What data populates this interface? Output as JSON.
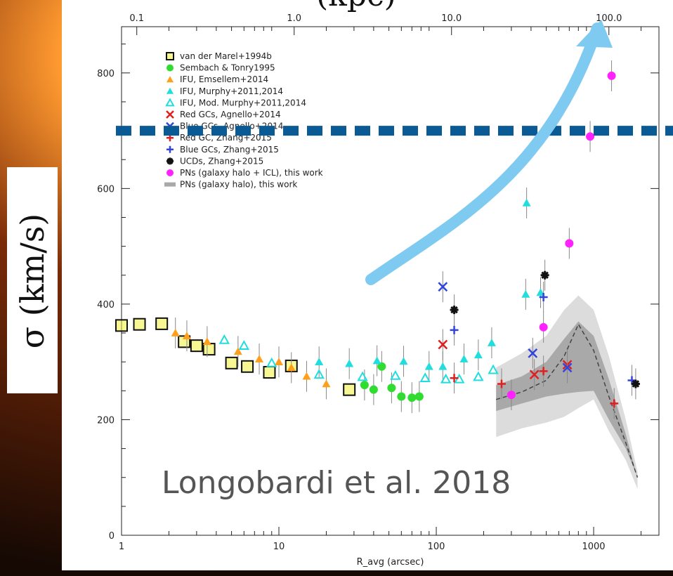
{
  "y_axis_title": "σ (km/s)",
  "top_axis_title": "(kpc)",
  "credit": "Longobardi et al. 2018",
  "colors": {
    "dashed_line": "#0a5a96",
    "arrow": "#7fcaf0",
    "shade_light": "#dcdcdc",
    "shade_dark": "#a9a9a9"
  },
  "chart_data": {
    "type": "scatter",
    "xscale": "log",
    "xlabel": "R_avg (arcsec)",
    "xlim": [
      1,
      2600
    ],
    "ylim": [
      0,
      880
    ],
    "xticks": [
      1,
      10,
      100,
      1000
    ],
    "xtick_labels": [
      "1",
      "10",
      "100",
      "1000"
    ],
    "yticks": [
      0,
      200,
      400,
      600,
      800
    ],
    "ytick_labels": [
      "0",
      "200",
      "400",
      "600",
      "800"
    ],
    "top_axis": {
      "ticks": [
        0.1,
        1.0,
        10.0,
        100.0
      ],
      "tick_labels": [
        "0.1",
        "1.0",
        "10.0",
        "100.0"
      ]
    },
    "legend_position": "top-left",
    "horizontal_line": {
      "y": 700,
      "style": "dashed"
    },
    "series": [
      {
        "name": "van der Marel+1994b",
        "marker": "open-square",
        "color": "#111111",
        "points": [
          [
            1.0,
            363
          ],
          [
            1.3,
            365
          ],
          [
            1.8,
            366
          ],
          [
            2.5,
            335
          ],
          [
            3.0,
            328
          ],
          [
            3.6,
            322
          ],
          [
            5.0,
            298
          ],
          [
            6.3,
            292
          ],
          [
            8.7,
            282
          ],
          [
            12,
            293
          ],
          [
            28,
            252
          ]
        ]
      },
      {
        "name": "Sembach & Tonry1995",
        "marker": "filled-circle",
        "color": "#2fdc2f",
        "points": [
          [
            35,
            260
          ],
          [
            40,
            252
          ],
          [
            45,
            292
          ],
          [
            52,
            255
          ],
          [
            60,
            240
          ],
          [
            70,
            238
          ],
          [
            78,
            240
          ]
        ]
      },
      {
        "name": "IFU, Emsellem+2014",
        "marker": "filled-triangle",
        "color": "#ff9f1a",
        "points": [
          [
            2.2,
            350
          ],
          [
            2.6,
            345
          ],
          [
            3.5,
            335
          ],
          [
            5.5,
            318
          ],
          [
            7.5,
            305
          ],
          [
            10,
            300
          ],
          [
            12,
            290
          ],
          [
            15,
            275
          ],
          [
            20,
            262
          ]
        ]
      },
      {
        "name": "IFU, Murphy+2011,2014",
        "marker": "filled-triangle",
        "color": "#22dddd",
        "points": [
          [
            18,
            300
          ],
          [
            28,
            297
          ],
          [
            42,
            302
          ],
          [
            62,
            301
          ],
          [
            90,
            292
          ],
          [
            110,
            292
          ],
          [
            150,
            305
          ],
          [
            185,
            312
          ],
          [
            225,
            333
          ],
          [
            370,
            417
          ],
          [
            460,
            420
          ],
          [
            375,
            575
          ]
        ]
      },
      {
        "name": "IFU, Mod. Murphy+2011,2014",
        "marker": "open-triangle",
        "color": "#22dddd",
        "points": [
          [
            4.5,
            338
          ],
          [
            6,
            328
          ],
          [
            9,
            298
          ],
          [
            18,
            278
          ],
          [
            34,
            274
          ],
          [
            55,
            276
          ],
          [
            85,
            272
          ],
          [
            115,
            270
          ],
          [
            140,
            270
          ],
          [
            185,
            274
          ],
          [
            230,
            286
          ]
        ]
      },
      {
        "name": "Red GCs, Agnello+2014",
        "marker": "x",
        "color": "#e02020",
        "points": [
          [
            110,
            330
          ],
          [
            420,
            278
          ],
          [
            680,
            295
          ]
        ]
      },
      {
        "name": "Blue GCs, Agnello+2014",
        "marker": "x",
        "color": "#3344dd",
        "points": [
          [
            110,
            430
          ],
          [
            410,
            315
          ],
          [
            680,
            290
          ]
        ]
      },
      {
        "name": "Red GC, Zhang+2015",
        "marker": "plus",
        "color": "#e02020",
        "points": [
          [
            130,
            272
          ],
          [
            260,
            262
          ],
          [
            480,
            284
          ],
          [
            1350,
            228
          ]
        ]
      },
      {
        "name": "Blue GCs, Zhang+2015",
        "marker": "plus",
        "color": "#3344dd",
        "points": [
          [
            130,
            355
          ],
          [
            480,
            412
          ],
          [
            1750,
            268
          ]
        ]
      },
      {
        "name": "UCDs, Zhang+2015",
        "marker": "asterisk",
        "color": "#111111",
        "points": [
          [
            130,
            390
          ],
          [
            490,
            450
          ],
          [
            1850,
            262
          ]
        ]
      },
      {
        "name": "PNs (galaxy halo + ICL), this work",
        "marker": "filled-circle",
        "color": "#ff22ff",
        "points": [
          [
            300,
            243
          ],
          [
            480,
            360
          ],
          [
            700,
            505
          ],
          [
            950,
            690
          ],
          [
            1300,
            795
          ]
        ]
      },
      {
        "name": "PNs (galaxy halo), this work",
        "marker": "band",
        "color": "#a9a9a9",
        "band_outer": {
          "x": [
            240,
            350,
            500,
            650,
            800,
            1000,
            1250,
            1600,
            1900
          ],
          "upper": [
            290,
            315,
            345,
            390,
            415,
            390,
            310,
            200,
            110
          ],
          "lower": [
            170,
            185,
            195,
            205,
            220,
            235,
            180,
            130,
            80
          ]
        },
        "band_inner": {
          "x": [
            240,
            350,
            500,
            650,
            800,
            1000,
            1250,
            1600,
            1900
          ],
          "upper": [
            260,
            275,
            300,
            340,
            370,
            345,
            270,
            175,
            100
          ],
          "lower": [
            215,
            228,
            240,
            245,
            248,
            250,
            200,
            150,
            100
          ]
        },
        "median": {
          "x": [
            240,
            350,
            500,
            650,
            800,
            1000,
            1250,
            1600,
            1900
          ],
          "y": [
            235,
            248,
            268,
            310,
            365,
            320,
            240,
            160,
            100
          ]
        }
      }
    ]
  }
}
